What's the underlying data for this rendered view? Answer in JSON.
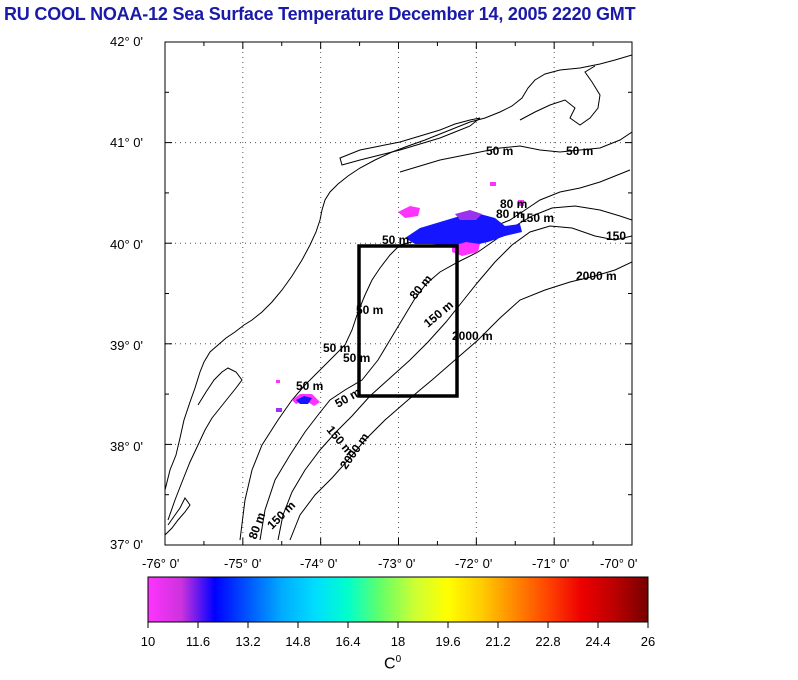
{
  "title": "RU COOL  NOAA-12 Sea Surface Temperature December 14, 2005 2220 GMT",
  "map": {
    "lon_range": [
      -76,
      -70
    ],
    "lat_range": [
      37,
      42
    ],
    "grid": "dotted",
    "lon_labels": [
      "-76° 0'",
      "-75° 0'",
      "-74° 0'",
      "-73° 0'",
      "-72° 0'",
      "-71° 0'",
      "-70° 0'"
    ],
    "lat_labels": [
      "42° 0'",
      "41° 0'",
      "40° 0'",
      "39° 0'",
      "38° 0'",
      "37° 0'"
    ],
    "contour_labels": [
      "50 m",
      "50 m",
      "50 m",
      "80 m",
      "80 m",
      "150 m",
      "50 m",
      "150",
      "2000 m",
      "50 m",
      "80 m",
      "150 m",
      "2000 m",
      "50 m",
      "50 m",
      "50 m",
      "150 m",
      "2000 m",
      "80 m",
      "150 m"
    ],
    "box": {
      "lon": [
        -73.5,
        -72.25
      ],
      "lat": [
        38.5,
        40.0
      ]
    }
  },
  "colorbar": {
    "min": 10,
    "max": 26,
    "colors": [
      "#ff33ff",
      "#cc33dd",
      "#0000ff",
      "#0055ff",
      "#00aaff",
      "#00ddff",
      "#00ffcc",
      "#66ff66",
      "#ccff33",
      "#ffff00",
      "#ffcc00",
      "#ff8800",
      "#ff4400",
      "#ee0000",
      "#bb0000",
      "#770000"
    ],
    "tick_labels": [
      "10",
      "11.6",
      "13.2",
      "14.8",
      "16.4",
      "18",
      "19.6",
      "21.2",
      "22.8",
      "24.4",
      "26"
    ],
    "unit": "C",
    "unit_sup": "0"
  },
  "sst_patches": {
    "color_cold": "#1515ff",
    "color_magenta": "#ff33ff",
    "color_violet": "#9933ee"
  }
}
